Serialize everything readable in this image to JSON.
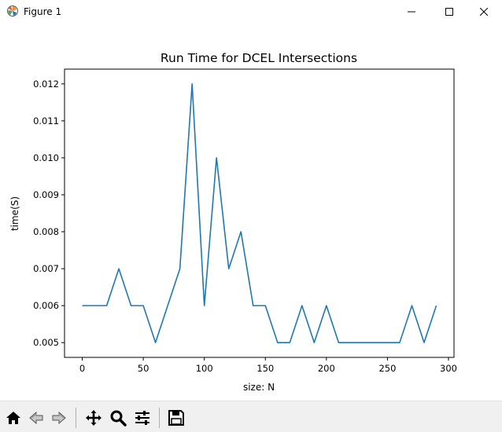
{
  "window": {
    "title": "Figure 1",
    "icon": "matplotlib-icon",
    "controls": [
      "minimize-icon",
      "maximize-icon",
      "close-icon"
    ]
  },
  "toolbar": {
    "buttons": [
      {
        "name": "home-button",
        "icon": "home-icon"
      },
      {
        "name": "back-button",
        "icon": "back-arrow-icon"
      },
      {
        "name": "forward-button",
        "icon": "forward-arrow-icon"
      },
      {
        "name": "pan-button",
        "icon": "move-icon"
      },
      {
        "name": "zoom-button",
        "icon": "magnifier-icon"
      },
      {
        "name": "configure-subplots-button",
        "icon": "sliders-icon"
      },
      {
        "name": "save-button",
        "icon": "floppy-disk-icon"
      }
    ]
  },
  "chart_data": {
    "type": "line",
    "title": "Run Time for DCEL Intersections",
    "xlabel": "size: N",
    "ylabel": "time(S)",
    "xlim": [
      -14.5,
      304.5
    ],
    "ylim": [
      0.0046,
      0.0124
    ],
    "xticks": [
      0,
      50,
      100,
      150,
      200,
      250,
      300
    ],
    "yticks": [
      0.005,
      0.006,
      0.007,
      0.008,
      0.009,
      0.01,
      0.011,
      0.012
    ],
    "ytick_labels": [
      "0.005",
      "0.006",
      "0.007",
      "0.008",
      "0.009",
      "0.010",
      "0.011",
      "0.012"
    ],
    "grid": false,
    "line_color": "#1f77b4",
    "series": [
      {
        "x": [
          0,
          10,
          20,
          30,
          40,
          50,
          60,
          70,
          80,
          90,
          100,
          110,
          120,
          130,
          140,
          150,
          160,
          170,
          180,
          190,
          200,
          210,
          220,
          230,
          240,
          250,
          260,
          270,
          280,
          290
        ],
        "values": [
          0.006,
          0.006,
          0.006,
          0.007,
          0.006,
          0.006,
          0.005,
          0.006,
          0.007,
          0.012,
          0.006,
          0.01,
          0.007,
          0.008,
          0.006,
          0.006,
          0.005,
          0.005,
          0.006,
          0.005,
          0.006,
          0.005,
          0.005,
          0.005,
          0.005,
          0.005,
          0.005,
          0.006,
          0.005,
          0.006
        ]
      }
    ]
  }
}
